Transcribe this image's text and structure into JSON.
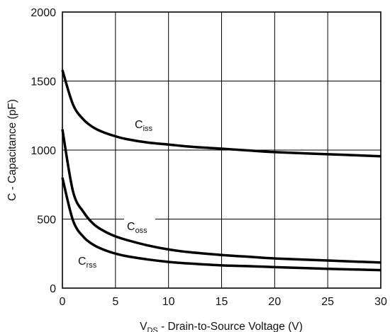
{
  "chart_data": {
    "type": "line",
    "title": "",
    "xlabel": {
      "main": "V",
      "sub": "DS",
      "rest": " - Drain-to-Source Voltage (V)"
    },
    "ylabel": "C - Capacitance (pF)",
    "xlim": [
      0,
      30
    ],
    "ylim": [
      0,
      2000
    ],
    "xticks": [
      0,
      5,
      10,
      15,
      20,
      25,
      30
    ],
    "yticks": [
      0,
      500,
      1000,
      1500,
      2000
    ],
    "grid": true,
    "legend": "inline labels",
    "line_color": "#000000",
    "series": [
      {
        "name": "Ciss",
        "label_main": "C",
        "label_sub": "iss",
        "x": [
          0,
          1,
          2,
          3,
          4,
          5,
          6,
          8,
          10,
          12,
          15,
          18,
          20,
          25,
          30
        ],
        "y": [
          1580,
          1330,
          1220,
          1160,
          1125,
          1100,
          1080,
          1055,
          1040,
          1025,
          1010,
          995,
          985,
          970,
          955
        ]
      },
      {
        "name": "Coss",
        "label_main": "C",
        "label_sub": "oss",
        "x": [
          0,
          1,
          2,
          3,
          4,
          5,
          6,
          8,
          10,
          12,
          15,
          18,
          20,
          25,
          30
        ],
        "y": [
          1150,
          700,
          550,
          460,
          410,
          375,
          350,
          310,
          280,
          260,
          240,
          225,
          215,
          200,
          185
        ]
      },
      {
        "name": "Crss",
        "label_main": "C",
        "label_sub": "rss",
        "x": [
          0,
          1,
          2,
          3,
          4,
          5,
          6,
          8,
          10,
          12,
          15,
          18,
          20,
          25,
          30
        ],
        "y": [
          800,
          490,
          370,
          310,
          275,
          250,
          232,
          208,
          190,
          178,
          165,
          158,
          152,
          140,
          130
        ]
      }
    ]
  }
}
